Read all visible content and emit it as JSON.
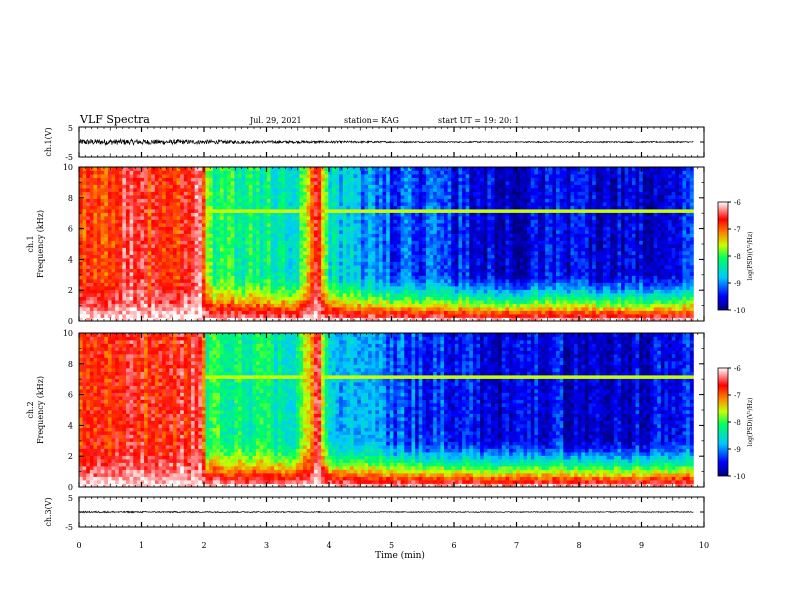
{
  "header": {
    "title": "VLF Spectra",
    "date": "Jul. 29, 2021",
    "station": "station= KAG",
    "start": "start UT = 19: 20: 1"
  },
  "chart_data": [
    {
      "type": "line",
      "name": "ch1-waveform",
      "ylabel": "ch.1(V)",
      "ylim": [
        -5,
        5
      ],
      "yticks": [
        "5",
        "-5"
      ],
      "xlim": [
        0,
        10
      ],
      "x_end": 9.83,
      "baseline": 0,
      "amplitude": {
        "x": [
          0,
          1.0,
          2.0,
          3.0,
          4.0,
          5.0,
          6.0,
          7.0,
          8.0,
          9.0,
          9.83
        ],
        "a": [
          1.0,
          0.9,
          0.7,
          0.45,
          0.4,
          0.25,
          0.2,
          0.2,
          0.2,
          0.2,
          0.2
        ]
      }
    },
    {
      "type": "heatmap",
      "name": "ch1-spectrogram",
      "ylabel": "ch.1",
      "ylabel2": "Frequency (kHz)",
      "xlim": [
        0,
        10
      ],
      "ylim": [
        0,
        10
      ],
      "yticks": [
        0,
        2,
        4,
        6,
        8,
        10
      ],
      "x_end": 9.83,
      "colorbar": {
        "label": "log(PSD)(V²/Hz)",
        "range": [
          -10,
          -6
        ],
        "ticks": [
          "-6",
          "-7",
          "-8",
          "-9",
          "-10"
        ]
      },
      "intensity_profile": {
        "x": [
          0,
          0.3,
          0.8,
          1.2,
          1.6,
          1.95,
          2.05,
          2.5,
          3.0,
          3.5,
          3.8,
          3.85,
          4.0,
          4.5,
          5.0,
          5.5,
          6.0,
          6.5,
          7.0,
          7.5,
          8.0,
          8.5,
          9.0,
          9.5,
          9.83
        ],
        "top_log_psd": [
          -7.0,
          -6.8,
          -6.6,
          -6.8,
          -6.7,
          -6.5,
          -8.0,
          -8.2,
          -8.3,
          -8.4,
          -6.5,
          -6.8,
          -8.6,
          -8.9,
          -9.2,
          -9.3,
          -9.4,
          -9.6,
          -9.7,
          -9.5,
          -9.6,
          -9.7,
          -9.6,
          -9.5,
          -9.4
        ]
      },
      "line_at_khz": 7.2
    },
    {
      "type": "heatmap",
      "name": "ch2-spectrogram",
      "ylabel": "ch.2",
      "ylabel2": "Frequency (kHz)",
      "xlim": [
        0,
        10
      ],
      "ylim": [
        0,
        10
      ],
      "yticks": [
        0,
        2,
        4,
        6,
        8,
        10
      ],
      "x_end": 9.83,
      "colorbar": {
        "label": "log(PSD)(V²/Hz)",
        "range": [
          -10,
          -6
        ],
        "ticks": [
          "-6",
          "-7",
          "-8",
          "-9",
          "-10"
        ]
      },
      "intensity_profile": {
        "x": [
          0,
          0.3,
          0.8,
          1.2,
          1.6,
          1.95,
          2.05,
          2.5,
          3.0,
          3.5,
          3.8,
          3.85,
          4.0,
          4.5,
          5.0,
          5.5,
          6.0,
          6.5,
          7.0,
          7.5,
          8.0,
          8.5,
          9.0,
          9.5,
          9.83
        ],
        "top_log_psd": [
          -7.0,
          -6.8,
          -6.6,
          -6.8,
          -6.7,
          -6.5,
          -8.0,
          -8.2,
          -8.3,
          -8.4,
          -6.5,
          -6.8,
          -8.6,
          -8.9,
          -9.2,
          -9.3,
          -9.4,
          -9.6,
          -9.7,
          -9.5,
          -9.6,
          -9.7,
          -9.6,
          -9.5,
          -9.4
        ]
      },
      "line_at_khz": 7.2
    },
    {
      "type": "line",
      "name": "ch3-waveform",
      "ylabel": "ch.3(V)",
      "ylim": [
        -5,
        5
      ],
      "yticks": [
        "5",
        "-5"
      ],
      "xlim": [
        0,
        10
      ],
      "x_end": 9.83,
      "baseline": 0,
      "amplitude": {
        "x": [
          0,
          2.0,
          4.0,
          9.83
        ],
        "a": [
          0.25,
          0.2,
          0.15,
          0.15
        ]
      }
    }
  ],
  "xaxis": {
    "label": "Time (min)",
    "ticks": [
      "0",
      "1",
      "2",
      "3",
      "4",
      "5",
      "6",
      "7",
      "8",
      "9",
      "10"
    ]
  }
}
